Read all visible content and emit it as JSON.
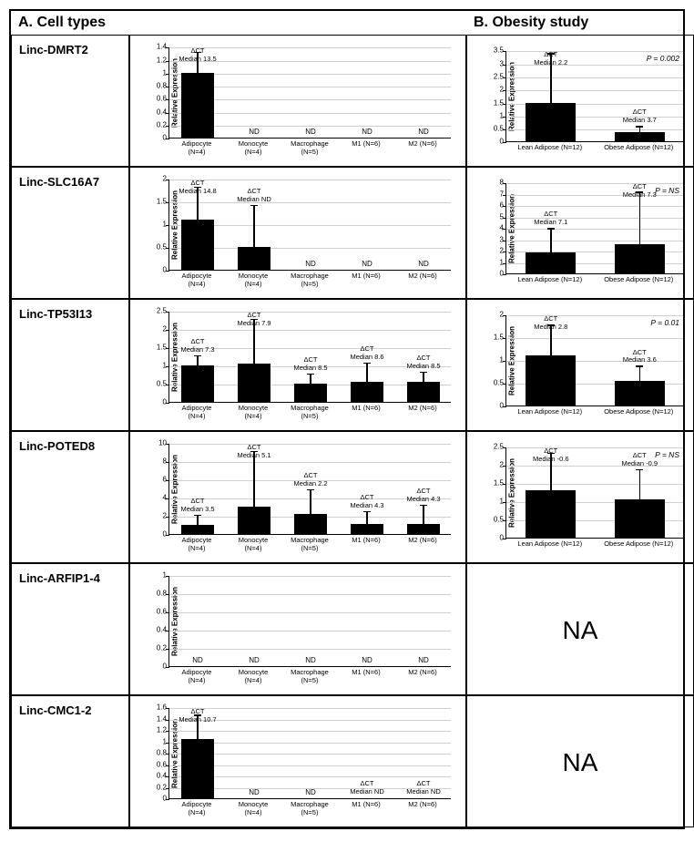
{
  "headers": {
    "a": "A. Cell types",
    "b": "B. Obesity study"
  },
  "ylabel": "Relative Expression",
  "na_text": "NA",
  "annot_prefix": "ΔCT",
  "median_prefix": "Median",
  "nd_text": "ND",
  "colors": {
    "bar": "#000000",
    "grid": "#d0d0d0",
    "axis": "#000000",
    "bg": "#ffffff"
  },
  "cellTypes_xlabels": [
    {
      "l1": "Adipocyte",
      "l2": "(N=4)"
    },
    {
      "l1": "Monocyte",
      "l2": "(N=4)"
    },
    {
      "l1": "Macrophage",
      "l2": "(N=5)"
    },
    {
      "l1": "M1 (N=6)",
      "l2": ""
    },
    {
      "l1": "M2 (N=6)",
      "l2": ""
    }
  ],
  "obesity_xlabels": [
    {
      "l1": "Lean Adipose (N=12)",
      "l2": ""
    },
    {
      "l1": "Obese Adipose (N=12)",
      "l2": ""
    }
  ],
  "rows": [
    {
      "name": "Linc-DMRT2",
      "cellTypes": {
        "ymax": 1.4,
        "yticks": [
          0,
          0.2,
          0.4,
          0.6,
          0.8,
          1,
          1.2,
          1.4
        ],
        "bars": [
          {
            "val": 1.0,
            "err": 0.3,
            "annot": "13.5"
          },
          {
            "val": 0,
            "nd": true
          },
          {
            "val": 0,
            "nd": true
          },
          {
            "val": 0,
            "nd": true
          },
          {
            "val": 0,
            "nd": true
          }
        ]
      },
      "obesity": {
        "ymax": 3.5,
        "yticks": [
          0,
          0.5,
          1,
          1.5,
          2,
          2.5,
          3,
          3.5
        ],
        "pval": "P = 0.002",
        "bars": [
          {
            "val": 1.5,
            "err": 1.85,
            "annot": "2.2"
          },
          {
            "val": 0.35,
            "err": 0.2,
            "annot": "3.7"
          }
        ]
      }
    },
    {
      "name": "Linc-SLC16A7",
      "cellTypes": {
        "ymax": 2,
        "yticks": [
          0,
          0.5,
          1,
          1.5,
          2
        ],
        "bars": [
          {
            "val": 1.1,
            "err": 0.7,
            "annot": "14.8"
          },
          {
            "val": 0.5,
            "err": 0.9,
            "annot": "ND"
          },
          {
            "val": 0,
            "nd": true
          },
          {
            "val": 0,
            "nd": true
          },
          {
            "val": 0,
            "nd": true
          }
        ]
      },
      "obesity": {
        "ymax": 8,
        "yticks": [
          0,
          1,
          2,
          3,
          4,
          5,
          6,
          7,
          8
        ],
        "pval": "P = NS",
        "bars": [
          {
            "val": 1.9,
            "err": 2.0,
            "annot": "7.1"
          },
          {
            "val": 2.6,
            "err": 4.5,
            "annot": "7.3"
          }
        ]
      }
    },
    {
      "name": "Linc-TP53I13",
      "cellTypes": {
        "ymax": 2.5,
        "yticks": [
          0,
          0.5,
          1,
          1.5,
          2,
          2.5
        ],
        "bars": [
          {
            "val": 1.0,
            "err": 0.25,
            "annot": "7.3"
          },
          {
            "val": 1.05,
            "err": 1.2,
            "annot": "7.9"
          },
          {
            "val": 0.5,
            "err": 0.25,
            "annot": "8.5"
          },
          {
            "val": 0.55,
            "err": 0.5,
            "annot": "8.6"
          },
          {
            "val": 0.55,
            "err": 0.25,
            "annot": "8.5"
          }
        ]
      },
      "obesity": {
        "ymax": 2,
        "yticks": [
          0,
          0.5,
          1,
          1.5,
          2
        ],
        "pval": "P = 0.01",
        "bars": [
          {
            "val": 1.1,
            "err": 0.65,
            "annot": "2.8"
          },
          {
            "val": 0.55,
            "err": 0.3,
            "annot": "3.6"
          }
        ]
      }
    },
    {
      "name": "Linc-POTED8",
      "cellTypes": {
        "ymax": 10,
        "yticks": [
          0,
          2,
          4,
          6,
          8,
          10
        ],
        "bars": [
          {
            "val": 1.0,
            "err": 1.0,
            "annot": "3.5"
          },
          {
            "val": 3.0,
            "err": 6.0,
            "annot": "5.1"
          },
          {
            "val": 2.2,
            "err": 2.6,
            "annot": "2.2"
          },
          {
            "val": 1.1,
            "err": 1.3,
            "annot": "4.3"
          },
          {
            "val": 1.1,
            "err": 2.0,
            "annot": "4.3"
          }
        ]
      },
      "obesity": {
        "ymax": 2.5,
        "yticks": [
          0,
          0.5,
          1,
          1.5,
          2,
          2.5
        ],
        "pval": "P = NS",
        "bars": [
          {
            "val": 1.3,
            "err": 1.0,
            "annot": "-0.6"
          },
          {
            "val": 1.05,
            "err": 0.8,
            "annot": "-0.9"
          }
        ]
      }
    },
    {
      "name": "Linc-ARFIP1-4",
      "cellTypes": {
        "ymax": 1,
        "yticks": [
          0,
          0.2,
          0.4,
          0.6,
          0.8,
          1
        ],
        "bars": [
          {
            "val": 0,
            "nd": true
          },
          {
            "val": 0,
            "nd": true
          },
          {
            "val": 0,
            "nd": true
          },
          {
            "val": 0,
            "nd": true
          },
          {
            "val": 0,
            "nd": true
          }
        ]
      },
      "obesity": "NA"
    },
    {
      "name": "Linc-CMC1-2",
      "cellTypes": {
        "ymax": 1.6,
        "yticks": [
          0,
          0.2,
          0.4,
          0.6,
          0.8,
          1,
          1.2,
          1.4,
          1.6
        ],
        "bars": [
          {
            "val": 1.05,
            "err": 0.4,
            "annot": "10.7"
          },
          {
            "val": 0,
            "nd": true
          },
          {
            "val": 0,
            "nd": true
          },
          {
            "val": 0,
            "nd": false,
            "annot": "ND"
          },
          {
            "val": 0,
            "nd": false,
            "annot": "ND"
          }
        ]
      },
      "obesity": "NA"
    }
  ]
}
